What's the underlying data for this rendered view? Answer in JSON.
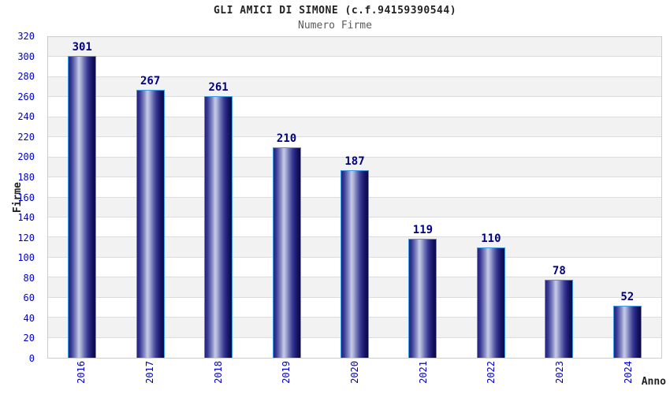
{
  "header": {
    "title": "GLI AMICI DI SIMONE (c.f.94159390544)",
    "subtitle": "Numero Firme"
  },
  "chart_data": {
    "type": "bar",
    "title": "GLI AMICI DI SIMONE (c.f.94159390544)",
    "subtitle": "Numero Firme",
    "categories": [
      "2016",
      "2017",
      "2018",
      "2019",
      "2020",
      "2021",
      "2022",
      "2023",
      "2024"
    ],
    "values": [
      301,
      267,
      261,
      210,
      187,
      119,
      110,
      78,
      52
    ],
    "xlabel": "Anno",
    "ylabel": "Firme",
    "ylim": [
      0,
      320
    ],
    "ytick_step": 20,
    "grid": true,
    "legend_position": "none",
    "alternating_bands": true
  },
  "colors": {
    "tick_label": "#0000cc",
    "value_label": "#000080",
    "bar_border": "#3d9be8",
    "bar_dark": "#0a0a48",
    "bar_highlight": "#c8cce8",
    "band_gray": "#f2f2f2",
    "grid_line": "#dcdcdc",
    "plot_border": "#cccccc",
    "title_color": "#222222",
    "subtitle_color": "#5a5a5a"
  }
}
